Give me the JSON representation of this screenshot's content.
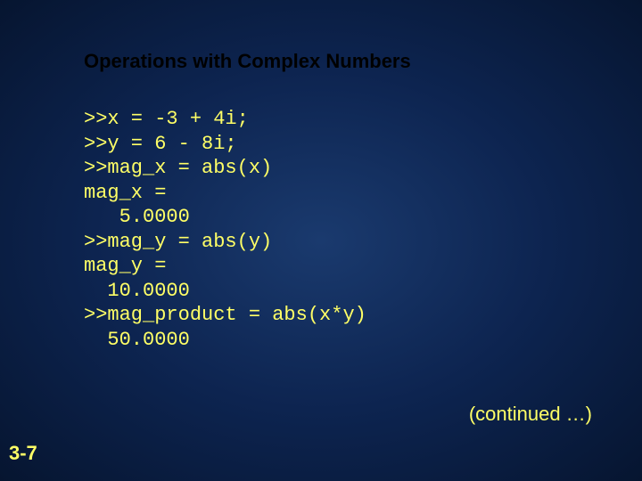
{
  "slide": {
    "title": "Operations with Complex Numbers",
    "continued_label": "(continued …)",
    "page_number": "3-7",
    "background_colors": {
      "center": "#1a3a6e",
      "mid": "#0d2450",
      "edge": "#061530"
    },
    "title_color": "#000000",
    "text_color": "#ffff66",
    "code_font": "Courier New",
    "title_font": "Arial",
    "title_fontsize": 22,
    "code_fontsize": 22
  },
  "code": {
    "lines": [
      ">>x = -3 + 4i;",
      ">>y = 6 - 8i;",
      ">>mag_x = abs(x)",
      "mag_x =",
      "   5.0000",
      ">>mag_y = abs(y)",
      "mag_y =",
      "  10.0000",
      ">>mag_product = abs(x*y)",
      "  50.0000"
    ],
    "l0": ">>x = -3 + 4i;",
    "l1": ">>y = 6 - 8i;",
    "l2": ">>mag_x = abs(x)",
    "l3": "mag_x =",
    "l4": "   5.0000",
    "l5": ">>mag_y = abs(y)",
    "l6": "mag_y =",
    "l7": "  10.0000",
    "l8": ">>mag_product = abs(x*y)",
    "l9": "  50.0000"
  }
}
